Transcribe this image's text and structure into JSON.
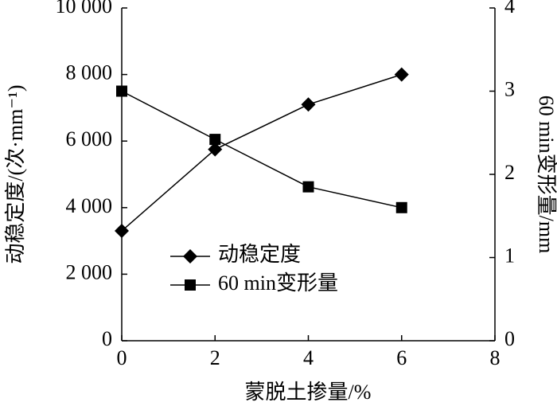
{
  "chart_data": {
    "type": "line",
    "xlabel": "蒙脱土掺量/%",
    "ylabel": "动稳定度/(次·mm⁻¹)",
    "y2label": "60 min变形量/mm",
    "xlim": [
      0,
      8
    ],
    "xticks": [
      0,
      2,
      4,
      6,
      8
    ],
    "ylim": [
      0,
      10000
    ],
    "yticks": [
      0,
      {
        "value": 2000,
        "label": "2 000"
      },
      {
        "value": 4000,
        "label": "4 000"
      },
      {
        "value": 6000,
        "label": "6 000"
      },
      {
        "value": 8000,
        "label": "8 000"
      },
      {
        "value": 10000,
        "label": "10 000"
      }
    ],
    "y2lim": [
      0,
      4
    ],
    "y2ticks": [
      0,
      1,
      2,
      3,
      4
    ],
    "x": [
      0,
      2,
      4,
      6
    ],
    "series": [
      {
        "name": "动稳定度",
        "color": "#000000",
        "marker": "diamond",
        "values": [
          3300,
          5750,
          7100,
          8000
        ]
      },
      {
        "name": "60 min变形量",
        "color": "#000000",
        "marker": "square",
        "axis": "y2",
        "values": [
          3.0,
          2.42,
          1.85,
          1.6
        ]
      }
    ]
  }
}
